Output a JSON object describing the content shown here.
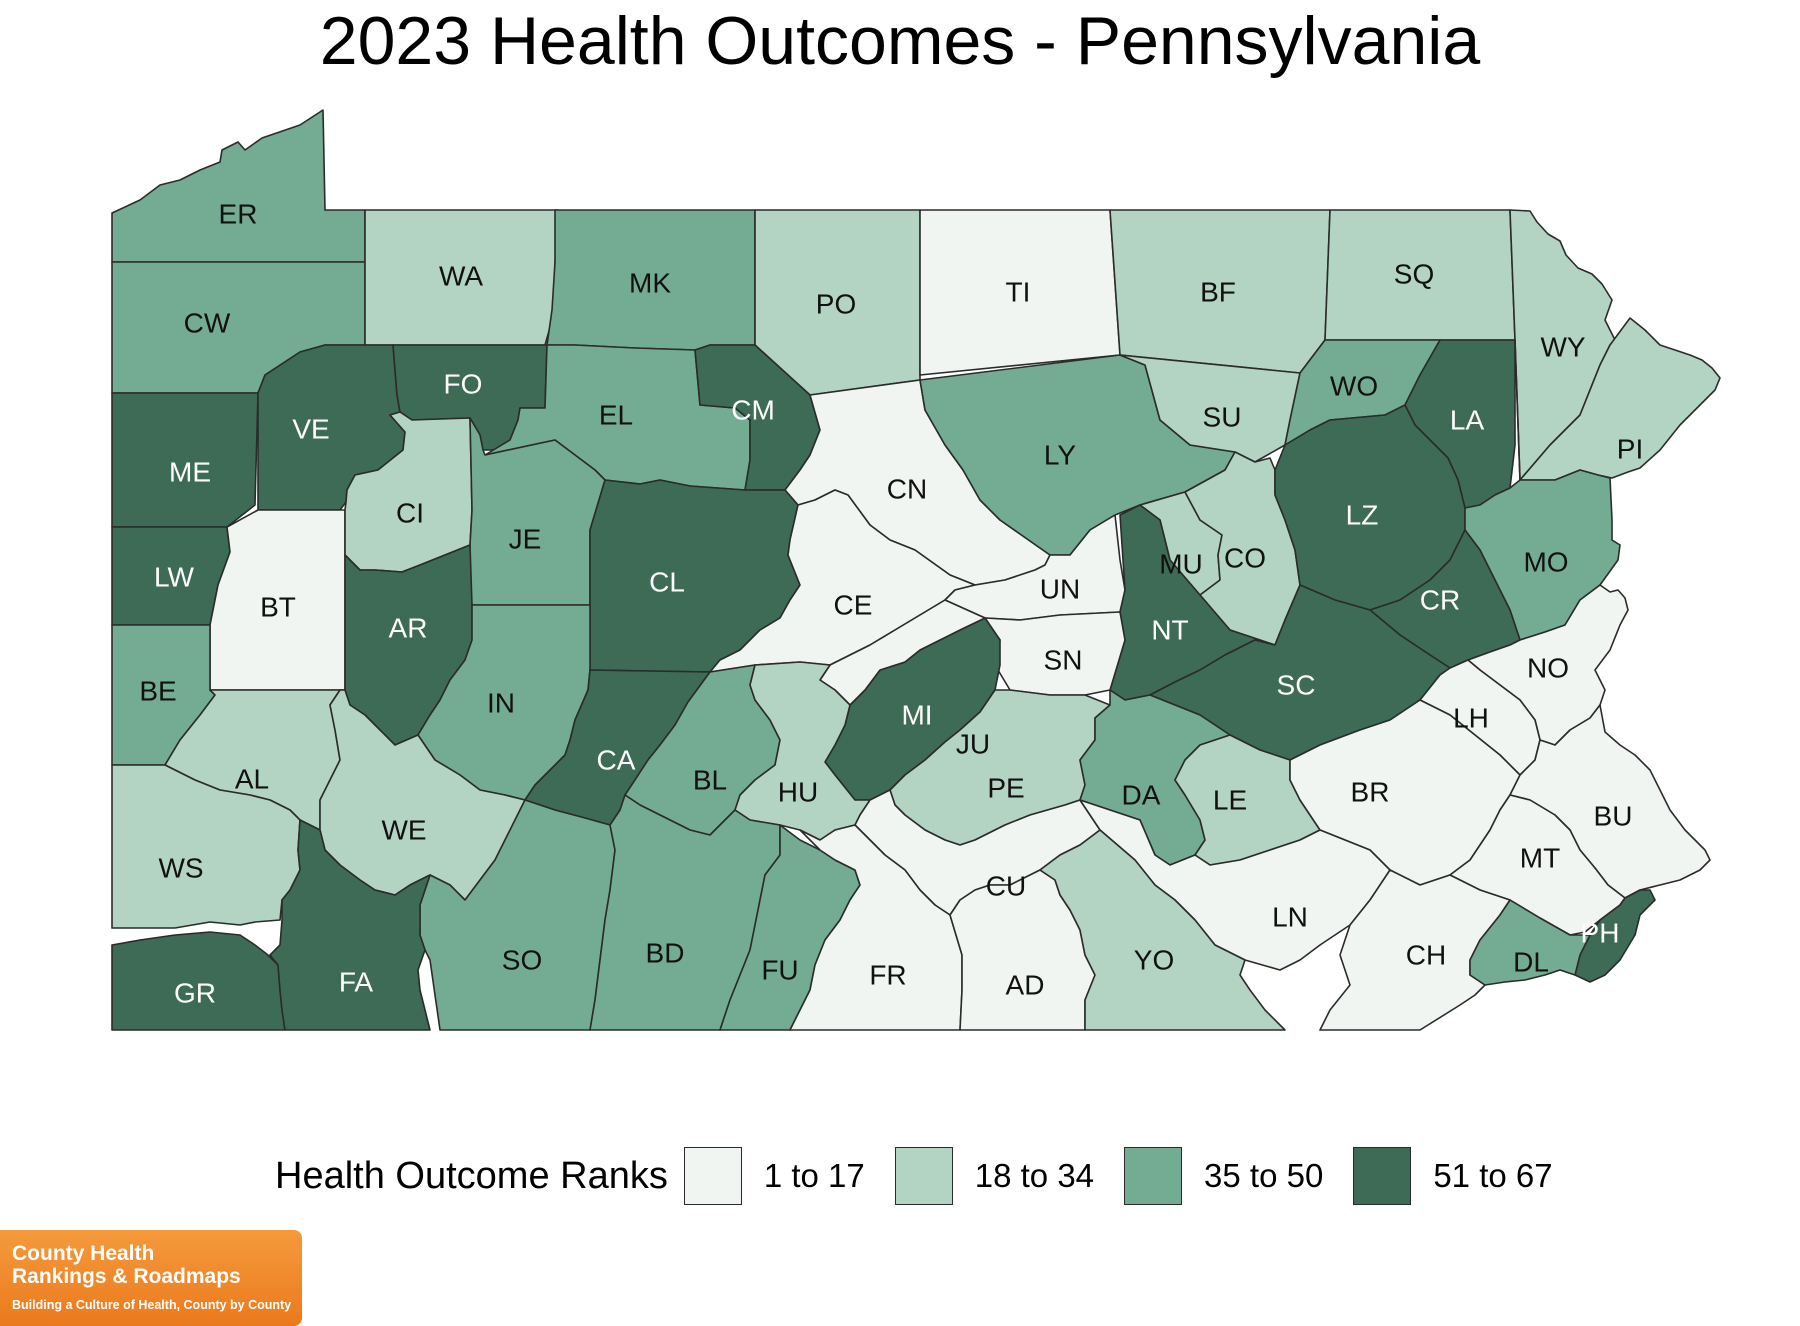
{
  "title": "2023 Health Outcomes - Pennsylvania",
  "legend": {
    "title": "Health Outcome Ranks",
    "bins": [
      {
        "label": "1 to 17",
        "color": "#f1f5f2"
      },
      {
        "label": "18 to 34",
        "color": "#b3d3c3"
      },
      {
        "label": "35 to 50",
        "color": "#74ac93"
      },
      {
        "label": "51 to 67",
        "color": "#3d6b56"
      }
    ]
  },
  "counties": [
    {
      "code": "ER",
      "bin": 3
    },
    {
      "code": "CW",
      "bin": 3
    },
    {
      "code": "WA",
      "bin": 2
    },
    {
      "code": "MK",
      "bin": 3
    },
    {
      "code": "PO",
      "bin": 2
    },
    {
      "code": "TI",
      "bin": 1
    },
    {
      "code": "BF",
      "bin": 2
    },
    {
      "code": "SQ",
      "bin": 2
    },
    {
      "code": "WY",
      "bin": 2
    },
    {
      "code": "ME",
      "bin": 4
    },
    {
      "code": "VE",
      "bin": 4
    },
    {
      "code": "FO",
      "bin": 4
    },
    {
      "code": "EL",
      "bin": 3
    },
    {
      "code": "CM",
      "bin": 4
    },
    {
      "code": "CN",
      "bin": 1
    },
    {
      "code": "LY",
      "bin": 3
    },
    {
      "code": "SU",
      "bin": 2
    },
    {
      "code": "WO",
      "bin": 3
    },
    {
      "code": "LA",
      "bin": 4
    },
    {
      "code": "PI",
      "bin": 2
    },
    {
      "code": "LW",
      "bin": 4
    },
    {
      "code": "BT",
      "bin": 1
    },
    {
      "code": "CI",
      "bin": 2
    },
    {
      "code": "JE",
      "bin": 3
    },
    {
      "code": "CL",
      "bin": 4
    },
    {
      "code": "CE",
      "bin": 1
    },
    {
      "code": "UN",
      "bin": 1
    },
    {
      "code": "MU",
      "bin": 2
    },
    {
      "code": "CO",
      "bin": 2
    },
    {
      "code": "LZ",
      "bin": 4
    },
    {
      "code": "MO",
      "bin": 3
    },
    {
      "code": "AR",
      "bin": 4
    },
    {
      "code": "NT",
      "bin": 4
    },
    {
      "code": "CR",
      "bin": 4
    },
    {
      "code": "BE",
      "bin": 3
    },
    {
      "code": "IN",
      "bin": 3
    },
    {
      "code": "SN",
      "bin": 1
    },
    {
      "code": "SC",
      "bin": 4
    },
    {
      "code": "NO",
      "bin": 1
    },
    {
      "code": "AL",
      "bin": 2
    },
    {
      "code": "CA",
      "bin": 4
    },
    {
      "code": "BL",
      "bin": 3
    },
    {
      "code": "MI",
      "bin": 4
    },
    {
      "code": "JU",
      "bin": 1
    },
    {
      "code": "LH",
      "bin": 1
    },
    {
      "code": "HU",
      "bin": 2
    },
    {
      "code": "PE",
      "bin": 2
    },
    {
      "code": "DA",
      "bin": 3
    },
    {
      "code": "LE",
      "bin": 2
    },
    {
      "code": "BR",
      "bin": 1
    },
    {
      "code": "BU",
      "bin": 1
    },
    {
      "code": "WE",
      "bin": 2
    },
    {
      "code": "WS",
      "bin": 2
    },
    {
      "code": "MT",
      "bin": 1
    },
    {
      "code": "CU",
      "bin": 1
    },
    {
      "code": "LN",
      "bin": 1
    },
    {
      "code": "PH",
      "bin": 4
    },
    {
      "code": "SO",
      "bin": 3
    },
    {
      "code": "BD",
      "bin": 3
    },
    {
      "code": "FU",
      "bin": 3
    },
    {
      "code": "FR",
      "bin": 1
    },
    {
      "code": "AD",
      "bin": 1
    },
    {
      "code": "YO",
      "bin": 2
    },
    {
      "code": "CH",
      "bin": 1
    },
    {
      "code": "DL",
      "bin": 3
    },
    {
      "code": "GR",
      "bin": 4
    },
    {
      "code": "FA",
      "bin": 4
    }
  ],
  "logo": {
    "line1": "County Health",
    "line2": "Rankings & Roadmaps",
    "tagline": "Building a Culture of Health, County by County"
  }
}
